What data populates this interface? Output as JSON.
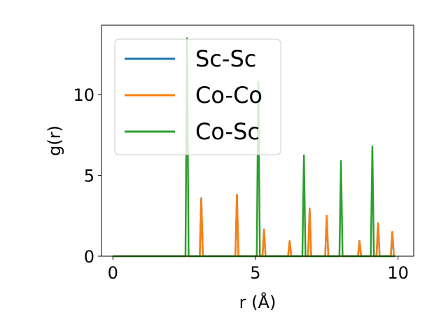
{
  "chart_data": {
    "type": "line",
    "title": "",
    "xlabel": "r (Å)",
    "ylabel": "g(r)",
    "xlim": [
      -0.4,
      10.55
    ],
    "ylim": [
      0,
      14.3
    ],
    "xticks": [
      0,
      5,
      10
    ],
    "yticks": [
      0,
      5,
      10
    ],
    "grid": false,
    "legend_position": "upper-left",
    "series": [
      {
        "name": "Sc-Sc",
        "color": "#1f77b4",
        "peaks": [
          [
            3.1,
            3.6
          ],
          [
            4.35,
            3.8
          ],
          [
            5.3,
            1.65
          ],
          [
            6.2,
            0.95
          ],
          [
            6.9,
            2.95
          ],
          [
            7.5,
            2.5
          ],
          [
            8.65,
            0.95
          ],
          [
            9.3,
            2.05
          ],
          [
            9.8,
            1.5
          ]
        ]
      },
      {
        "name": "Co-Co",
        "color": "#ff7f0e",
        "peaks": [
          [
            3.1,
            3.6
          ],
          [
            4.35,
            3.8
          ],
          [
            5.3,
            1.65
          ],
          [
            6.2,
            0.95
          ],
          [
            6.9,
            2.95
          ],
          [
            7.5,
            2.5
          ],
          [
            8.65,
            0.95
          ],
          [
            9.3,
            2.05
          ],
          [
            9.8,
            1.5
          ]
        ]
      },
      {
        "name": "Co-Sc",
        "color": "#2ca02c",
        "peaks": [
          [
            2.6,
            13.5
          ],
          [
            5.1,
            10.8
          ],
          [
            6.7,
            6.25
          ],
          [
            8.0,
            5.9
          ],
          [
            9.1,
            6.8
          ]
        ]
      }
    ]
  }
}
